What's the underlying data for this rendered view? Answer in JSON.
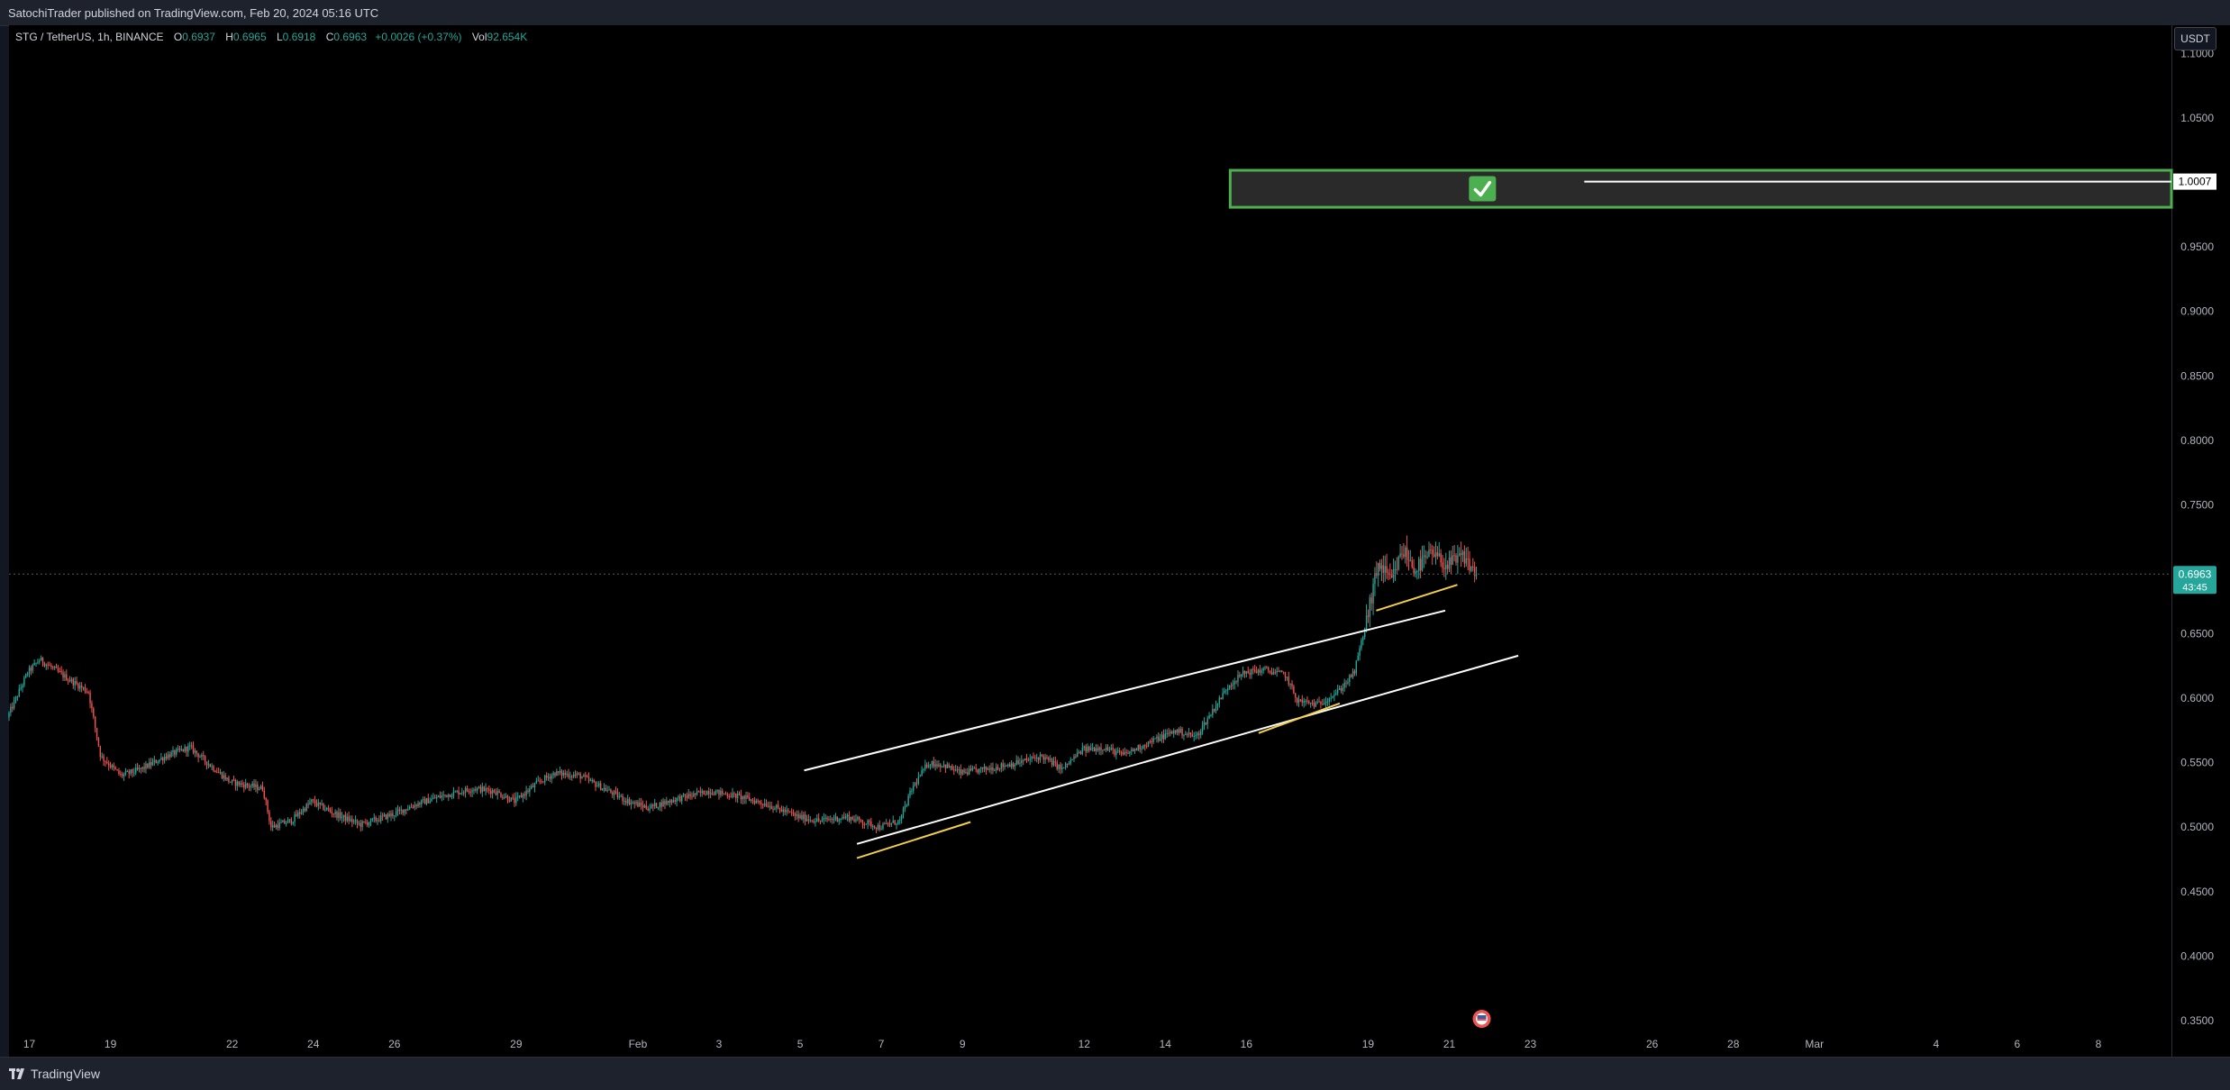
{
  "header": {
    "text": "SatochiTrader published on TradingView.com, Feb 20, 2024 05:16 UTC"
  },
  "legend": {
    "symbol": "STG / TetherUS, 1h, BINANCE",
    "o_label": "O",
    "o_value": "0.6937",
    "h_label": "H",
    "h_value": "0.6965",
    "l_label": "L",
    "l_value": "0.6918",
    "c_label": "C",
    "c_value": "0.6963",
    "change": "+0.0026 (+0.37%)",
    "vol_label": "Vol",
    "vol_value": "92.654K"
  },
  "currency_button": "USDT",
  "footer": {
    "brand": "TradingView"
  },
  "chart_data": {
    "type": "candlestick",
    "y_ticks": [
      "1.1000",
      "1.0500",
      "0.9500",
      "0.9000",
      "0.8500",
      "0.8000",
      "0.7500",
      "0.6500",
      "0.6000",
      "0.5500",
      "0.5000",
      "0.4500",
      "0.4000",
      "0.3500"
    ],
    "y_tick_values": [
      1.1,
      1.05,
      0.95,
      0.9,
      0.85,
      0.8,
      0.75,
      0.65,
      0.6,
      0.55,
      0.5,
      0.45,
      0.4,
      0.35
    ],
    "ylim": [
      0.322,
      1.122
    ],
    "x_ticks": [
      {
        "label": "17",
        "day": 0
      },
      {
        "label": "19",
        "day": 2
      },
      {
        "label": "22",
        "day": 5
      },
      {
        "label": "24",
        "day": 7
      },
      {
        "label": "26",
        "day": 9
      },
      {
        "label": "29",
        "day": 12
      },
      {
        "label": "Feb",
        "day": 15
      },
      {
        "label": "3",
        "day": 17
      },
      {
        "label": "5",
        "day": 19
      },
      {
        "label": "7",
        "day": 21
      },
      {
        "label": "9",
        "day": 23
      },
      {
        "label": "12",
        "day": 26
      },
      {
        "label": "14",
        "day": 28
      },
      {
        "label": "16",
        "day": 30
      },
      {
        "label": "19",
        "day": 33
      },
      {
        "label": "21",
        "day": 35
      },
      {
        "label": "23",
        "day": 37
      },
      {
        "label": "26",
        "day": 40
      },
      {
        "label": "28",
        "day": 42
      },
      {
        "label": "Mar",
        "day": 44
      },
      {
        "label": "4",
        "day": 47
      },
      {
        "label": "6",
        "day": 49
      },
      {
        "label": "8",
        "day": 51
      }
    ],
    "xlim": [
      -0.5,
      52.8
    ],
    "price_path": [
      [
        -0.5,
        0.585
      ],
      [
        0.0,
        0.62
      ],
      [
        0.3,
        0.63
      ],
      [
        1.0,
        0.615
      ],
      [
        1.5,
        0.605
      ],
      [
        1.8,
        0.555
      ],
      [
        2.3,
        0.54
      ],
      [
        2.8,
        0.545
      ],
      [
        3.4,
        0.555
      ],
      [
        4.0,
        0.562
      ],
      [
        4.5,
        0.548
      ],
      [
        5.0,
        0.535
      ],
      [
        5.8,
        0.53
      ],
      [
        6.0,
        0.5
      ],
      [
        6.5,
        0.505
      ],
      [
        7.0,
        0.52
      ],
      [
        7.6,
        0.51
      ],
      [
        8.2,
        0.502
      ],
      [
        9.0,
        0.51
      ],
      [
        9.6,
        0.518
      ],
      [
        10.3,
        0.525
      ],
      [
        11.0,
        0.53
      ],
      [
        11.5,
        0.528
      ],
      [
        12.0,
        0.52
      ],
      [
        12.6,
        0.535
      ],
      [
        13.0,
        0.542
      ],
      [
        13.6,
        0.54
      ],
      [
        14.2,
        0.53
      ],
      [
        14.8,
        0.52
      ],
      [
        15.3,
        0.515
      ],
      [
        16.0,
        0.522
      ],
      [
        16.8,
        0.528
      ],
      [
        17.5,
        0.524
      ],
      [
        18.2,
        0.518
      ],
      [
        19.0,
        0.508
      ],
      [
        19.5,
        0.505
      ],
      [
        20.2,
        0.508
      ],
      [
        21.0,
        0.5
      ],
      [
        21.5,
        0.505
      ],
      [
        21.8,
        0.53
      ],
      [
        22.2,
        0.55
      ],
      [
        22.6,
        0.548
      ],
      [
        23.0,
        0.542
      ],
      [
        23.6,
        0.545
      ],
      [
        24.4,
        0.55
      ],
      [
        25.0,
        0.555
      ],
      [
        25.5,
        0.545
      ],
      [
        26.0,
        0.56
      ],
      [
        26.5,
        0.562
      ],
      [
        27.0,
        0.556
      ],
      [
        27.6,
        0.565
      ],
      [
        28.3,
        0.575
      ],
      [
        28.8,
        0.57
      ],
      [
        29.2,
        0.59
      ],
      [
        29.6,
        0.61
      ],
      [
        30.0,
        0.62
      ],
      [
        30.5,
        0.622
      ],
      [
        31.0,
        0.618
      ],
      [
        31.3,
        0.598
      ],
      [
        31.8,
        0.595
      ],
      [
        32.3,
        0.605
      ],
      [
        32.7,
        0.62
      ],
      [
        33.0,
        0.66
      ],
      [
        33.3,
        0.705
      ],
      [
        33.6,
        0.69
      ],
      [
        33.9,
        0.715
      ],
      [
        34.2,
        0.7
      ],
      [
        34.6,
        0.712
      ],
      [
        35.0,
        0.703
      ],
      [
        35.4,
        0.71
      ],
      [
        35.7,
        0.696
      ]
    ],
    "last_price": {
      "label": "0.6963",
      "value": 0.6963,
      "countdown": "43:45"
    },
    "drawings": [
      {
        "kind": "channel_line",
        "color": "#ffffff",
        "from": [
          19.1,
          0.544
        ],
        "to": [
          34.9,
          0.668
        ]
      },
      {
        "kind": "channel_line",
        "color": "#ffffff",
        "from": [
          20.4,
          0.487
        ],
        "to": [
          36.7,
          0.633
        ]
      },
      {
        "kind": "support",
        "color": "#f2cf4a",
        "from": [
          20.4,
          0.476
        ],
        "to": [
          23.2,
          0.504
        ]
      },
      {
        "kind": "support",
        "color": "#f2cf4a",
        "from": [
          30.3,
          0.573
        ],
        "to": [
          32.3,
          0.596
        ]
      },
      {
        "kind": "support",
        "color": "#f2cf4a",
        "from": [
          33.2,
          0.668
        ],
        "to": [
          35.2,
          0.688
        ]
      }
    ],
    "target_zone": {
      "label": "1.0007",
      "value": 1.0007,
      "top": 1.0095,
      "bottom": 0.9808,
      "start_day": 29.6
    }
  }
}
